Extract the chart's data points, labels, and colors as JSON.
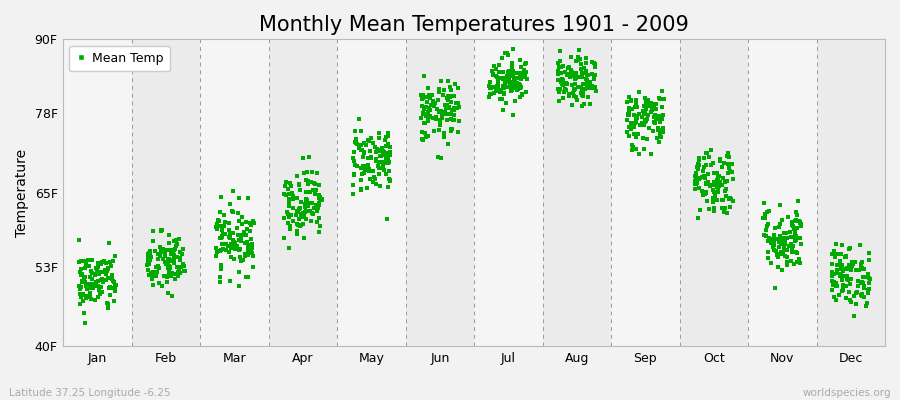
{
  "title": "Monthly Mean Temperatures 1901 - 2009",
  "ylabel": "Temperature",
  "yticks": [
    40,
    53,
    65,
    78,
    90
  ],
  "ytick_labels": [
    "40F",
    "53F",
    "65F",
    "78F",
    "90F"
  ],
  "months": [
    "Jan",
    "Feb",
    "Mar",
    "Apr",
    "May",
    "Jun",
    "Jul",
    "Aug",
    "Sep",
    "Oct",
    "Nov",
    "Dec"
  ],
  "mean_temps_F": [
    50.5,
    53.5,
    57.5,
    63.5,
    70.5,
    78.0,
    83.5,
    83.0,
    77.0,
    67.0,
    57.5,
    51.5
  ],
  "std_temps_F": [
    2.5,
    2.5,
    2.8,
    2.8,
    2.8,
    2.5,
    2.0,
    2.0,
    2.5,
    2.8,
    2.8,
    2.5
  ],
  "n_years": 109,
  "marker_color": "#00aa00",
  "marker_size": 2.5,
  "background_color": "#f2f2f2",
  "plot_bg_odd": "#ebebeb",
  "plot_bg_even": "#f5f5f5",
  "dashed_line_color": "#999999",
  "title_fontsize": 15,
  "axis_label_fontsize": 10,
  "tick_fontsize": 9,
  "legend_label": "Mean Temp",
  "bottom_left_text": "Latitude 37.25 Longitude -6.25",
  "bottom_right_text": "worldspecies.org",
  "seed": 42
}
